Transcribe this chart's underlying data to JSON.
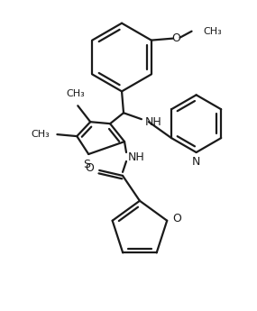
{
  "bg_color": "#ffffff",
  "line_color": "#1a1a1a",
  "bond_lw": 1.6,
  "figsize": [
    2.85,
    3.45
  ],
  "dpi": 100,
  "xlim": [
    0,
    285
  ],
  "ylim": [
    0,
    345
  ]
}
